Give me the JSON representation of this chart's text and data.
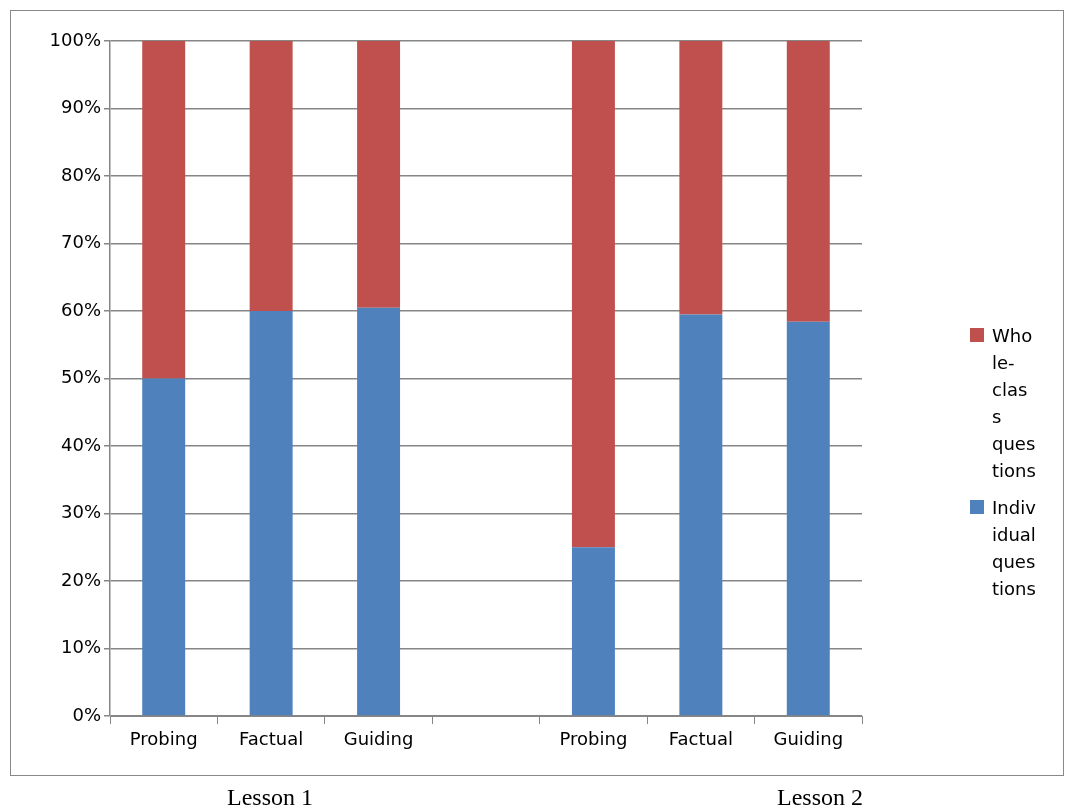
{
  "chart_data": {
    "type": "bar",
    "stacked": true,
    "categories": [
      "Probing",
      "Factual",
      "Guiding",
      null,
      "Probing",
      "Factual",
      "Guiding"
    ],
    "series": [
      {
        "name": "Individual questions",
        "color": "#4f81bd",
        "values": [
          50,
          60,
          60.5,
          null,
          25,
          59.5,
          58.4
        ]
      },
      {
        "name": "Whole-class questions",
        "color": "#c0504d",
        "values": [
          50,
          40,
          39.5,
          null,
          75,
          40.5,
          41.6
        ]
      }
    ],
    "ylim": [
      0,
      100
    ],
    "yticks": [
      {
        "value": 0,
        "label": "0%"
      },
      {
        "value": 10,
        "label": "10%"
      },
      {
        "value": 20,
        "label": "20%"
      },
      {
        "value": 30,
        "label": "30%"
      },
      {
        "value": 40,
        "label": "40%"
      },
      {
        "value": 50,
        "label": "50%"
      },
      {
        "value": 60,
        "label": "60%"
      },
      {
        "value": 70,
        "label": "70%"
      },
      {
        "value": 80,
        "label": "80%"
      },
      {
        "value": 90,
        "label": "90%"
      },
      {
        "value": 100,
        "label": "100%"
      }
    ],
    "grid": "y",
    "legend": "right",
    "annotations": [
      "Lesson 1",
      "Lesson 2"
    ]
  }
}
